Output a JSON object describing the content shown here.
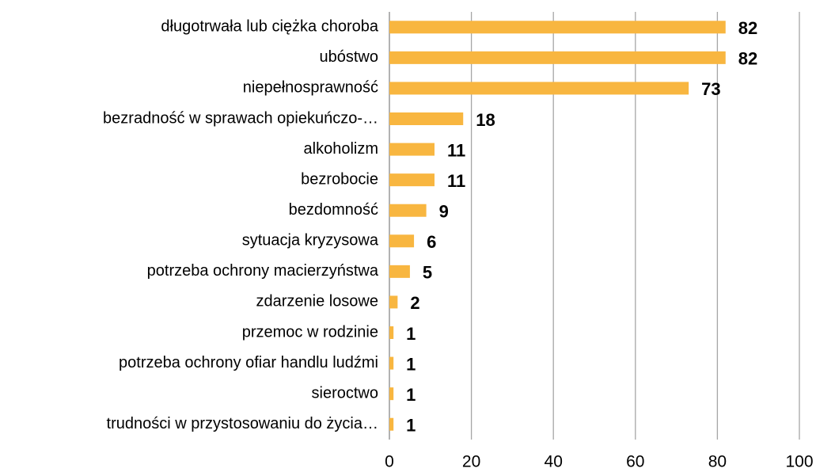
{
  "chart_data": {
    "type": "barh",
    "categories": [
      "długotrwała lub ciężka choroba",
      "ubóstwo",
      "niepełnosprawność",
      "bezradność w sprawach opiekuńczo-…",
      "alkoholizm",
      "bezrobocie",
      "bezdomność",
      "sytuacja kryzysowa",
      "potrzeba ochrony macierzyństwa",
      "zdarzenie losowe",
      "przemoc w rodzinie",
      "potrzeba ochrony ofiar handlu ludźmi",
      "sieroctwo",
      "trudności w przystosowaniu do życia…"
    ],
    "values": [
      82,
      82,
      73,
      18,
      11,
      11,
      9,
      6,
      5,
      2,
      1,
      1,
      1,
      1
    ],
    "color": "#f8b640",
    "xlim": [
      0,
      100
    ],
    "xticks": [
      0,
      20,
      40,
      60,
      80,
      100
    ],
    "grid": true,
    "data_labels": true
  }
}
